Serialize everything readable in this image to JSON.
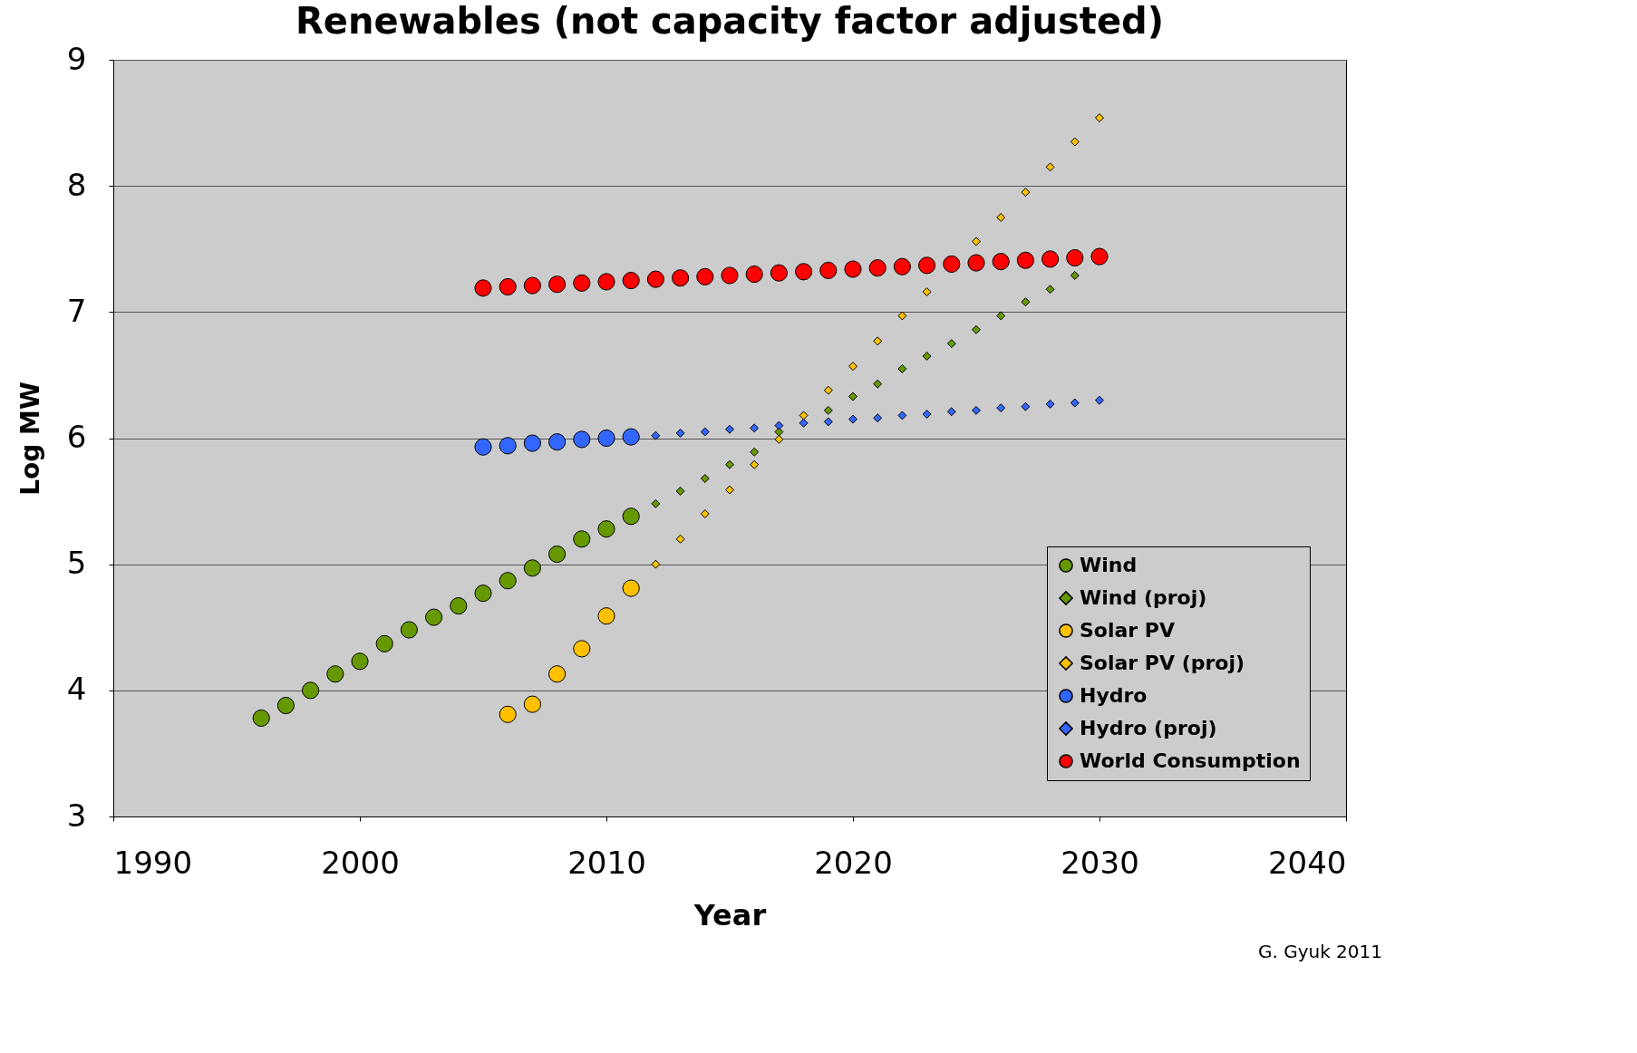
{
  "chart_data": {
    "type": "scatter",
    "title": "Renewables (not capacity factor adjusted)",
    "xlabel": "Year",
    "ylabel": "Log MW",
    "xlim": [
      1990,
      2040
    ],
    "xticks": [
      1990,
      2000,
      2010,
      2020,
      2030,
      2040
    ],
    "ylim": [
      3,
      9
    ],
    "yticks": [
      3,
      4,
      5,
      6,
      7,
      8,
      9
    ],
    "grid": "y",
    "legend": "bottom right",
    "annotations": [
      "G. Gyuk 2011"
    ],
    "series": [
      {
        "name": "Wind",
        "color": "#669900",
        "marker": "circle",
        "x": [
          1996,
          1997,
          1998,
          1999,
          2000,
          2001,
          2002,
          2003,
          2004,
          2005,
          2006,
          2007,
          2008,
          2009,
          2010,
          2011
        ],
        "values": [
          3.78,
          3.88,
          4.0,
          4.13,
          4.23,
          4.37,
          4.48,
          4.58,
          4.67,
          4.77,
          4.87,
          4.97,
          5.08,
          5.2,
          5.28,
          5.38
        ]
      },
      {
        "name": "Wind (proj)",
        "color": "#669900",
        "marker": "diamond",
        "x": [
          2012,
          2013,
          2014,
          2015,
          2016,
          2017,
          2018,
          2019,
          2020,
          2021,
          2022,
          2023,
          2024,
          2025,
          2026,
          2027,
          2028,
          2029
        ],
        "values": [
          5.48,
          5.58,
          5.68,
          5.79,
          5.89,
          6.05,
          null,
          6.22,
          6.33,
          6.43,
          6.55,
          6.65,
          6.75,
          6.86,
          6.97,
          7.08,
          7.18,
          7.29
        ]
      },
      {
        "name": "Solar PV",
        "color": "#ffc000",
        "marker": "circle",
        "x": [
          2006,
          2007,
          2008,
          2009,
          2010,
          2011
        ],
        "values": [
          3.81,
          3.89,
          4.13,
          4.33,
          4.59,
          4.81
        ]
      },
      {
        "name": "Solar PV (proj)",
        "color": "#ffc000",
        "marker": "diamond",
        "x": [
          2012,
          2013,
          2014,
          2015,
          2016,
          2017,
          2018,
          2019,
          2020,
          2021,
          2022,
          2023,
          2024,
          2025,
          2026,
          2027,
          2028,
          2029,
          2030
        ],
        "values": [
          5.0,
          5.2,
          5.4,
          5.59,
          5.79,
          5.99,
          6.18,
          6.38,
          6.57,
          6.77,
          6.97,
          7.16,
          null,
          7.56,
          7.75,
          7.95,
          8.15,
          8.35,
          8.54
        ]
      },
      {
        "name": "Hydro",
        "color": "#3366ff",
        "marker": "circle",
        "x": [
          2005,
          2006,
          2007,
          2008,
          2009,
          2010,
          2011
        ],
        "values": [
          5.93,
          5.94,
          5.96,
          5.97,
          5.99,
          6.0,
          6.01
        ]
      },
      {
        "name": "Hydro (proj)",
        "color": "#3366ff",
        "marker": "diamond",
        "x": [
          2012,
          2013,
          2014,
          2015,
          2016,
          2017,
          2018,
          2019,
          2020,
          2021,
          2022,
          2023,
          2024,
          2025,
          2026,
          2027,
          2028,
          2029,
          2030
        ],
        "values": [
          6.02,
          6.04,
          6.05,
          6.07,
          6.08,
          6.1,
          6.12,
          6.13,
          6.15,
          6.16,
          6.18,
          6.19,
          6.21,
          6.22,
          6.24,
          6.25,
          6.27,
          6.28,
          6.3
        ]
      },
      {
        "name": "World Consumption",
        "color": "#ff0000",
        "marker": "circle",
        "x": [
          2005,
          2006,
          2007,
          2008,
          2009,
          2010,
          2011,
          2012,
          2013,
          2014,
          2015,
          2016,
          2017,
          2018,
          2019,
          2020,
          2021,
          2022,
          2023,
          2024,
          2025,
          2026,
          2027,
          2028,
          2029,
          2030
        ],
        "values": [
          7.19,
          7.2,
          7.21,
          7.22,
          7.23,
          7.24,
          7.25,
          7.26,
          7.27,
          7.28,
          7.29,
          7.3,
          7.31,
          7.32,
          7.33,
          7.34,
          7.35,
          7.36,
          7.37,
          7.38,
          7.39,
          7.4,
          7.41,
          7.42,
          7.43,
          7.44
        ]
      }
    ]
  }
}
